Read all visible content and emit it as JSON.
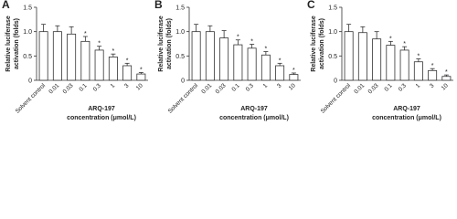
{
  "chart_data": [
    {
      "type": "bar",
      "panel": "A",
      "ylabel": [
        "Relative luciferase",
        "activation (folds)"
      ],
      "xlabel": [
        "ARQ-197",
        "concentration (μmol/L)"
      ],
      "categories": [
        "Solvent control",
        "0.01",
        "0.03",
        "0.1",
        "0.3",
        "1",
        "3",
        "10"
      ],
      "values": [
        1.0,
        1.0,
        0.95,
        0.8,
        0.62,
        0.48,
        0.3,
        0.13
      ],
      "errors": [
        0.15,
        0.12,
        0.15,
        0.1,
        0.08,
        0.06,
        0.05,
        0.03
      ],
      "significance": [
        null,
        null,
        null,
        "*",
        "*",
        "*",
        "*",
        "*"
      ],
      "ylim": [
        0,
        1.5
      ],
      "yticks": [
        0,
        0.5,
        {
          "value": 1,
          "label": "1.0"
        },
        1.5
      ],
      "color": "#ffffff"
    },
    {
      "type": "bar",
      "panel": "B",
      "ylabel": [
        "Relative luciferase",
        "activation (folds)"
      ],
      "xlabel": [
        "ARQ-197",
        "concentration (μmol/L)"
      ],
      "categories": [
        "Solvent control",
        "0.01",
        "0.03",
        "0.1",
        "0.3",
        "1",
        "3",
        "10"
      ],
      "values": [
        1.0,
        1.0,
        0.87,
        0.73,
        0.66,
        0.52,
        0.3,
        0.12
      ],
      "errors": [
        0.15,
        0.12,
        0.15,
        0.1,
        0.08,
        0.07,
        0.05,
        0.03
      ],
      "significance": [
        null,
        null,
        null,
        "*",
        "*",
        "*",
        "*",
        "*"
      ],
      "ylim": [
        0,
        1.5
      ],
      "yticks": [
        0,
        0.5,
        {
          "value": 1,
          "label": "1.0"
        },
        1.5
      ],
      "color": "#ffffff"
    },
    {
      "type": "bar",
      "panel": "C",
      "ylabel": [
        "Relative luciferase",
        "activation (folds)"
      ],
      "xlabel": [
        "ARQ-197",
        "concentration (μmol/L)"
      ],
      "categories": [
        "Solvent control",
        "0.01",
        "0.03",
        "0.1",
        "0.3",
        "1",
        "3",
        "10"
      ],
      "values": [
        1.0,
        0.98,
        0.85,
        0.72,
        0.62,
        0.38,
        0.2,
        0.08
      ],
      "errors": [
        0.15,
        0.12,
        0.15,
        0.08,
        0.07,
        0.06,
        0.04,
        0.03
      ],
      "significance": [
        null,
        null,
        null,
        "*",
        "*",
        "*",
        "*",
        "*"
      ],
      "ylim": [
        0,
        1.5
      ],
      "yticks": [
        0,
        0.5,
        {
          "value": 1,
          "label": "1.0"
        },
        1.5
      ],
      "color": "#ffffff"
    }
  ]
}
